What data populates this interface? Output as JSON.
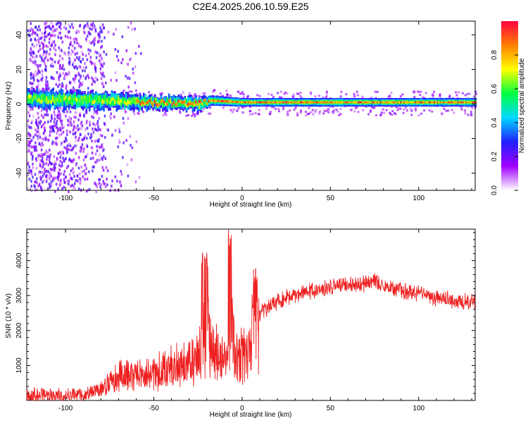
{
  "figure_title": "C2E4.2025.206.10.59.E25",
  "chart_data": [
    {
      "type": "heatmap",
      "title": "C2E4.2025.206.10.59.E25",
      "xlabel": "Height of straight line (km)",
      "ylabel": "Frequency (Hz)",
      "xlim": [
        -122,
        132
      ],
      "ylim": [
        -50,
        48
      ],
      "xticks": [
        -100,
        -50,
        0,
        50,
        100
      ],
      "yticks": [
        -40,
        -20,
        0,
        20,
        40
      ],
      "colorbar": {
        "label": "Normalized spectral amplitude",
        "range": [
          0,
          1
        ],
        "ticks": [
          "0.0",
          "0.2",
          "0.4",
          "0.6",
          "0.8"
        ],
        "stops": [
          "#ffffff",
          "#a000ff",
          "#2020ff",
          "#00d8ff",
          "#00ff40",
          "#ffff00",
          "#ff8000",
          "#ff0040"
        ]
      },
      "ridge": {
        "description_points_x": [
          -122,
          -80,
          -50,
          -25,
          -18,
          0,
          50,
          100,
          132
        ],
        "center_hz": [
          3,
          2,
          1,
          0,
          2,
          1,
          1,
          1,
          1
        ],
        "half_width_hz": [
          5,
          5,
          4,
          4,
          3,
          2.5,
          2.5,
          2.5,
          2.5
        ],
        "noise_scatter_until_km": -65
      }
    },
    {
      "type": "line",
      "xlabel": "Height of straight line (km)",
      "ylabel": "SNR (10 * v/v)",
      "xlim": [
        -122,
        132
      ],
      "ylim": [
        0,
        4900
      ],
      "xticks": [
        -100,
        -50,
        0,
        50,
        100
      ],
      "yticks": [
        1000,
        2000,
        3000,
        4000
      ],
      "series_color": "#ee2020",
      "envelope": {
        "x": [
          -122,
          -105,
          -90,
          -80,
          -70,
          -60,
          -50,
          -40,
          -30,
          -25,
          -22,
          -20,
          -18,
          -15,
          -10,
          -8,
          -6,
          -4,
          -2,
          0,
          4,
          6,
          8,
          10,
          15,
          20,
          30,
          40,
          50,
          60,
          70,
          75,
          80,
          90,
          100,
          110,
          120,
          132
        ],
        "y": [
          300,
          300,
          320,
          500,
          1050,
          1050,
          1200,
          1400,
          1600,
          1800,
          2600,
          3800,
          2400,
          2000,
          1900,
          1500,
          4400,
          1700,
          1800,
          2000,
          2100,
          2800,
          3700,
          2700,
          2800,
          3000,
          3200,
          3300,
          3400,
          3450,
          3500,
          3600,
          3400,
          3300,
          3200,
          3100,
          3000,
          3000
        ]
      }
    }
  ]
}
